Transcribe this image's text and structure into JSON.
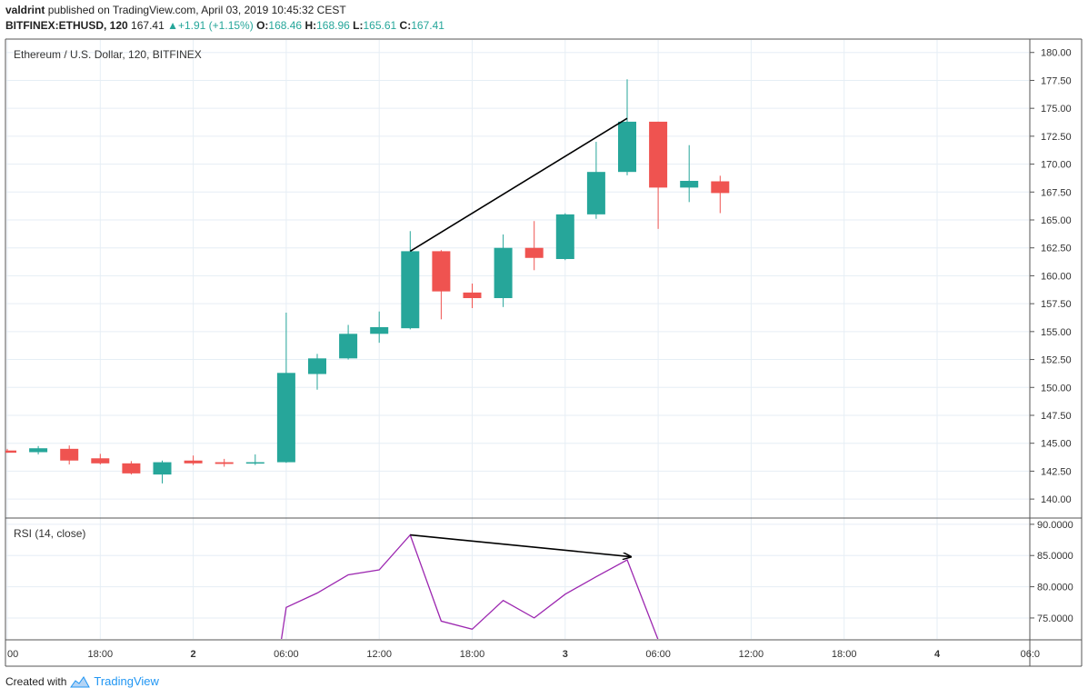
{
  "header": {
    "publisher": "valdrint",
    "published_text": "published on TradingView.com, April 03, 2019 10:45:32 CEST",
    "symbol": "BITFINEX:ETHUSD, 120",
    "last": "167.41",
    "change": "+1.91 (+1.15%)",
    "o_label": "O:",
    "o_value": "168.46",
    "h_label": "H:",
    "h_value": "168.96",
    "l_label": "L:",
    "l_value": "165.61",
    "c_label": "C:",
    "c_value": "167.41"
  },
  "footer": {
    "created_with": "Created with",
    "brand": "TradingView"
  },
  "colors": {
    "up": "#26a69a",
    "down": "#ef5350",
    "rsi": "#9c27b0",
    "grid": "#e6eef5",
    "border": "#555555"
  },
  "chart_data": [
    {
      "type": "candlestick",
      "title": "Ethereum / U.S. Dollar, 120, BITFINEX",
      "ylim": [
        138.3,
        181.2
      ],
      "yticks": [
        180.0,
        177.5,
        175.0,
        172.5,
        170.0,
        167.5,
        165.0,
        162.5,
        160.0,
        157.5,
        155.0,
        152.5,
        150.0,
        147.5,
        145.0,
        142.5,
        140.0
      ],
      "ytick_labels": [
        "180.00",
        "177.50",
        "175.00",
        "172.50",
        "170.00",
        "167.50",
        "165.00",
        "162.50",
        "160.00",
        "157.50",
        "155.00",
        "152.50",
        "150.00",
        "147.50",
        "145.00",
        "142.50",
        "140.00"
      ],
      "x_period_hours": 2,
      "candles": [
        {
          "t": "Apr 1 12:00",
          "o": 144.35,
          "h": 144.5,
          "l": 144.15,
          "c": 144.15
        },
        {
          "t": "Apr 1 14:00",
          "o": 144.2,
          "h": 144.75,
          "l": 144.0,
          "c": 144.55
        },
        {
          "t": "Apr 1 16:00",
          "o": 144.5,
          "h": 144.8,
          "l": 143.1,
          "c": 143.45
        },
        {
          "t": "Apr 1 18:00",
          "o": 143.65,
          "h": 144.05,
          "l": 143.1,
          "c": 143.2
        },
        {
          "t": "Apr 1 20:00",
          "o": 143.2,
          "h": 143.4,
          "l": 142.2,
          "c": 142.3
        },
        {
          "t": "Apr 1 22:00",
          "o": 142.2,
          "h": 143.45,
          "l": 141.4,
          "c": 143.3
        },
        {
          "t": "Apr 2 00:00",
          "o": 143.45,
          "h": 143.9,
          "l": 143.05,
          "c": 143.2
        },
        {
          "t": "Apr 2 02:00",
          "o": 143.3,
          "h": 143.6,
          "l": 142.9,
          "c": 143.15
        },
        {
          "t": "Apr 2 04:00",
          "o": 143.2,
          "h": 144.0,
          "l": 143.05,
          "c": 143.3
        },
        {
          "t": "Apr 2 06:00",
          "o": 143.3,
          "h": 156.7,
          "l": 143.25,
          "c": 151.3
        },
        {
          "t": "Apr 2 08:00",
          "o": 151.2,
          "h": 153.0,
          "l": 149.8,
          "c": 152.6
        },
        {
          "t": "Apr 2 10:00",
          "o": 152.6,
          "h": 155.6,
          "l": 152.5,
          "c": 154.8
        },
        {
          "t": "Apr 2 12:00",
          "o": 154.8,
          "h": 156.8,
          "l": 154.0,
          "c": 155.4
        },
        {
          "t": "Apr 2 14:00",
          "o": 155.3,
          "h": 164.0,
          "l": 155.2,
          "c": 162.2
        },
        {
          "t": "Apr 2 16:00",
          "o": 162.2,
          "h": 162.3,
          "l": 156.1,
          "c": 158.6
        },
        {
          "t": "Apr 2 18:00",
          "o": 158.5,
          "h": 159.3,
          "l": 157.1,
          "c": 158.0
        },
        {
          "t": "Apr 2 20:00",
          "o": 158.0,
          "h": 163.7,
          "l": 157.2,
          "c": 162.5
        },
        {
          "t": "Apr 2 22:00",
          "o": 162.5,
          "h": 164.9,
          "l": 160.5,
          "c": 161.6
        },
        {
          "t": "Apr 3 00:00",
          "o": 161.5,
          "h": 165.6,
          "l": 161.4,
          "c": 165.5
        },
        {
          "t": "Apr 3 02:00",
          "o": 165.5,
          "h": 172.0,
          "l": 165.1,
          "c": 169.3
        },
        {
          "t": "Apr 3 04:00",
          "o": 169.3,
          "h": 177.6,
          "l": 169.0,
          "c": 173.8
        },
        {
          "t": "Apr 3 06:00",
          "o": 173.8,
          "h": 173.8,
          "l": 164.2,
          "c": 167.9
        },
        {
          "t": "Apr 3 08:00",
          "o": 167.9,
          "h": 171.7,
          "l": 166.6,
          "c": 168.5
        },
        {
          "t": "Apr 3 10:00",
          "o": 168.46,
          "h": 168.96,
          "l": 165.61,
          "c": 167.41
        }
      ],
      "trendline": {
        "from": {
          "t": "Apr 2 14:00",
          "y": 162.2
        },
        "to": {
          "t": "Apr 3 04:00",
          "y": 174.1
        }
      }
    },
    {
      "type": "line",
      "title": "RSI (14, close)",
      "ylim": [
        71.5,
        91.0
      ],
      "yticks": [
        90.0,
        85.0,
        80.0,
        75.0
      ],
      "ytick_labels": [
        "90.0000",
        "85.0000",
        "80.0000",
        "75.0000"
      ],
      "series": [
        {
          "values": [
            {
              "t": "Apr 2 06:00",
              "y": 76.7
            },
            {
              "t": "Apr 2 08:00",
              "y": 79.0
            },
            {
              "t": "Apr 2 10:00",
              "y": 81.9
            },
            {
              "t": "Apr 2 12:00",
              "y": 82.7
            },
            {
              "t": "Apr 2 14:00",
              "y": 88.3
            },
            {
              "t": "Apr 2 16:00",
              "y": 74.5
            },
            {
              "t": "Apr 2 18:00",
              "y": 73.2
            },
            {
              "t": "Apr 2 20:00",
              "y": 77.8
            },
            {
              "t": "Apr 2 22:00",
              "y": 75.0
            },
            {
              "t": "Apr 3 00:00",
              "y": 78.8
            },
            {
              "t": "Apr 3 02:00",
              "y": 81.6
            },
            {
              "t": "Apr 3 04:00",
              "y": 84.3
            },
            {
              "t": "Apr 3 06:00",
              "y": 71.5
            }
          ]
        }
      ],
      "trendline": {
        "from": {
          "t": "Apr 2 14:00",
          "y": 88.3
        },
        "to": {
          "t": "Apr 3 04:00",
          "y": 84.8
        }
      }
    }
  ],
  "x_axis": {
    "tick_labels": [
      "00",
      "18:00",
      "2",
      "06:00",
      "12:00",
      "18:00",
      "3",
      "06:00",
      "12:00",
      "18:00",
      "4",
      "06:0"
    ],
    "tick_times": [
      "Apr 1 12:00",
      "Apr 1 18:00",
      "Apr 2 00:00",
      "Apr 2 06:00",
      "Apr 2 12:00",
      "Apr 2 18:00",
      "Apr 3 00:00",
      "Apr 3 06:00",
      "Apr 3 12:00",
      "Apr 3 18:00",
      "Apr 4 00:00",
      "Apr 4 06:00"
    ]
  }
}
